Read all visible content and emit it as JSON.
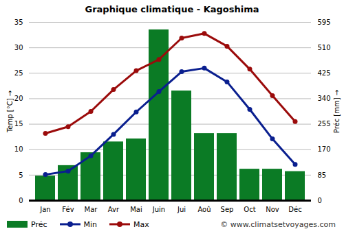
{
  "chart_data": {
    "type": "bar",
    "title": "Graphique climatique - Kagoshima",
    "categories": [
      "Jan",
      "Fév",
      "Mar",
      "Avr",
      "Mai",
      "Juin",
      "Jui",
      "Aoû",
      "Sep",
      "Oct",
      "Nov",
      "Déc"
    ],
    "series": [
      {
        "name": "Préc",
        "type": "bar",
        "axis": "y2",
        "color": "#0b7b25",
        "values": [
          82,
          117,
          160,
          196,
          206,
          570,
          366,
          224,
          224,
          105,
          105,
          97
        ]
      },
      {
        "name": "Min",
        "type": "line",
        "marker": "circle",
        "color": "#0a1f8f",
        "values": [
          5.1,
          5.8,
          8.8,
          13.0,
          17.4,
          21.4,
          25.3,
          26.0,
          23.3,
          17.9,
          12.1,
          7.1
        ]
      },
      {
        "name": "Max",
        "type": "line",
        "marker": "circle",
        "color": "#9b0b0b",
        "values": [
          13.2,
          14.5,
          17.5,
          21.8,
          25.5,
          27.7,
          31.9,
          32.8,
          30.3,
          25.8,
          20.6,
          15.5
        ]
      }
    ],
    "ylim": [
      0,
      35
    ],
    "yticks": [
      0,
      5,
      10,
      15,
      20,
      25,
      30,
      35
    ],
    "y2lim": [
      0,
      595
    ],
    "y2ticks": [
      0,
      85,
      170,
      255,
      340,
      425,
      510,
      595
    ],
    "y_label": "Temp [°C]",
    "y2_label": "Préc [mm]",
    "grid": true,
    "legend": "bottom",
    "source": "© www.climatsetvoyages.com"
  }
}
